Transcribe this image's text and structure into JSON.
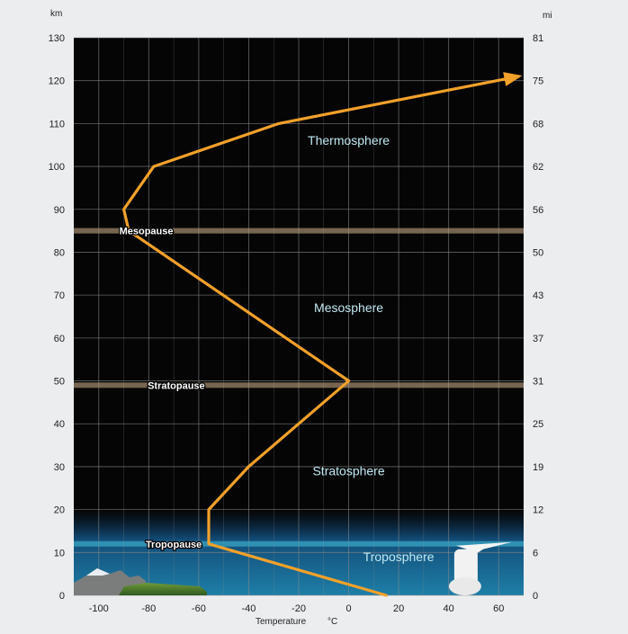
{
  "chart_data": {
    "type": "line",
    "left_unit": "km",
    "right_unit": "mi",
    "xlabel": "Temperature",
    "xlabel_unit": "°C",
    "x_ticks": [
      -100,
      -80,
      -60,
      -40,
      -20,
      0,
      20,
      40,
      60
    ],
    "y_ticks_km": [
      0,
      10,
      20,
      30,
      40,
      50,
      60,
      70,
      80,
      90,
      100,
      110,
      120,
      130
    ],
    "y_ticks_mi": [
      "0",
      "6",
      "12",
      "19",
      "25",
      "31",
      "37",
      "43",
      "50",
      "56",
      "62",
      "68",
      "75",
      "81"
    ],
    "xlim": [
      -110,
      70
    ],
    "ylim": [
      0,
      130
    ],
    "grid": true,
    "series": [
      {
        "color": "#f2a12a",
        "arrow_end": true,
        "points": [
          {
            "x": 15,
            "y": 0
          },
          {
            "x": -56,
            "y": 12
          },
          {
            "x": -56,
            "y": 20
          },
          {
            "x": -40,
            "y": 30
          },
          {
            "x": 0,
            "y": 50
          },
          {
            "x": -88,
            "y": 85
          },
          {
            "x": -90,
            "y": 90
          },
          {
            "x": -78,
            "y": 100
          },
          {
            "x": -28,
            "y": 110
          },
          {
            "x": 68,
            "y": 121
          }
        ]
      }
    ],
    "layers": [
      {
        "label": "Troposphere",
        "x": 20,
        "y": 8
      },
      {
        "label": "Stratosphere",
        "x": 0,
        "y": 28
      },
      {
        "label": "Mesosphere",
        "x": 0,
        "y": 66
      },
      {
        "label": "Thermosphere",
        "x": 0,
        "y": 105
      }
    ],
    "boundaries": [
      {
        "label": "Tropopause",
        "y": 12,
        "x": -70
      },
      {
        "label": "Stratopause",
        "y": 49,
        "x": -69
      },
      {
        "label": "Mesopause",
        "y": 85,
        "x": -81
      }
    ]
  },
  "colors": {
    "plot_bg": "#050505",
    "grid": "#8a8a8a",
    "line": "#f2a12a",
    "layer_text": "#bfe9f2",
    "boundary_band": "#b59a7a",
    "troposphere_blue": "#1e7fa8"
  }
}
